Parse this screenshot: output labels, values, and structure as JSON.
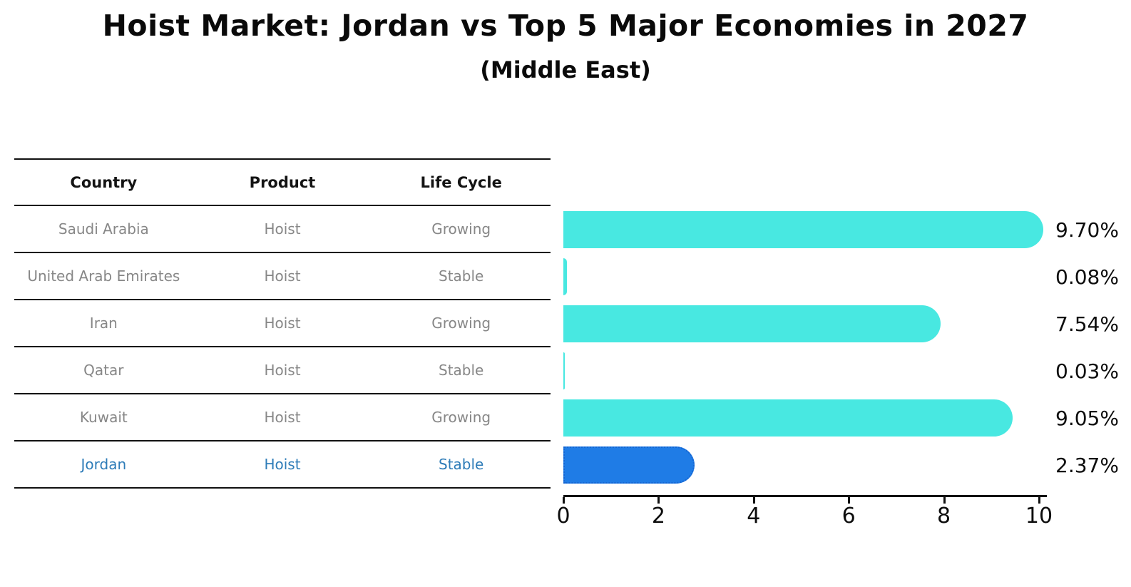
{
  "title": "Hoist Market: Jordan vs Top 5 Major Economies in 2027",
  "subtitle": "(Middle East)",
  "table": {
    "headers": [
      "Country",
      "Product",
      "Life Cycle"
    ],
    "rows": [
      {
        "country": "Saudi Arabia",
        "product": "Hoist",
        "life_cycle": "Growing",
        "highlight": false
      },
      {
        "country": "United Arab Emirates",
        "product": "Hoist",
        "life_cycle": "Stable",
        "highlight": false
      },
      {
        "country": "Iran",
        "product": "Hoist",
        "life_cycle": "Growing",
        "highlight": false
      },
      {
        "country": "Qatar",
        "product": "Hoist",
        "life_cycle": "Stable",
        "highlight": false
      },
      {
        "country": "Kuwait",
        "product": "Hoist",
        "life_cycle": "Growing",
        "highlight": false
      },
      {
        "country": "Jordan",
        "product": "Hoist",
        "life_cycle": "Stable",
        "highlight": true
      }
    ]
  },
  "chart_data": {
    "type": "bar",
    "orientation": "horizontal",
    "title": "Hoist Market: Jordan vs Top 5 Major Economies in 2027 (Middle East)",
    "categories": [
      "Saudi Arabia",
      "United Arab Emirates",
      "Iran",
      "Qatar",
      "Kuwait",
      "Jordan"
    ],
    "values": [
      9.7,
      0.08,
      7.54,
      0.03,
      9.05,
      2.37
    ],
    "value_labels": [
      "9.70%",
      "0.08%",
      "7.54%",
      "0.03%",
      "9.05%",
      "2.37%"
    ],
    "xlim": [
      0,
      10
    ],
    "x_ticks": [
      "0",
      "2",
      "4",
      "6",
      "8",
      "10"
    ],
    "grid": false,
    "legend_position": "none",
    "highlight_index": 5,
    "bar_color": "#48e8e1",
    "highlight_bar_color": "#1f7ce6",
    "highlight_border_color": "#1565d2",
    "highlight_text_color": "#2e7cb8"
  },
  "colors": {
    "background": "#ffffff",
    "text": "#0a0a0a",
    "muted_text": "#878787",
    "line": "#111111"
  }
}
